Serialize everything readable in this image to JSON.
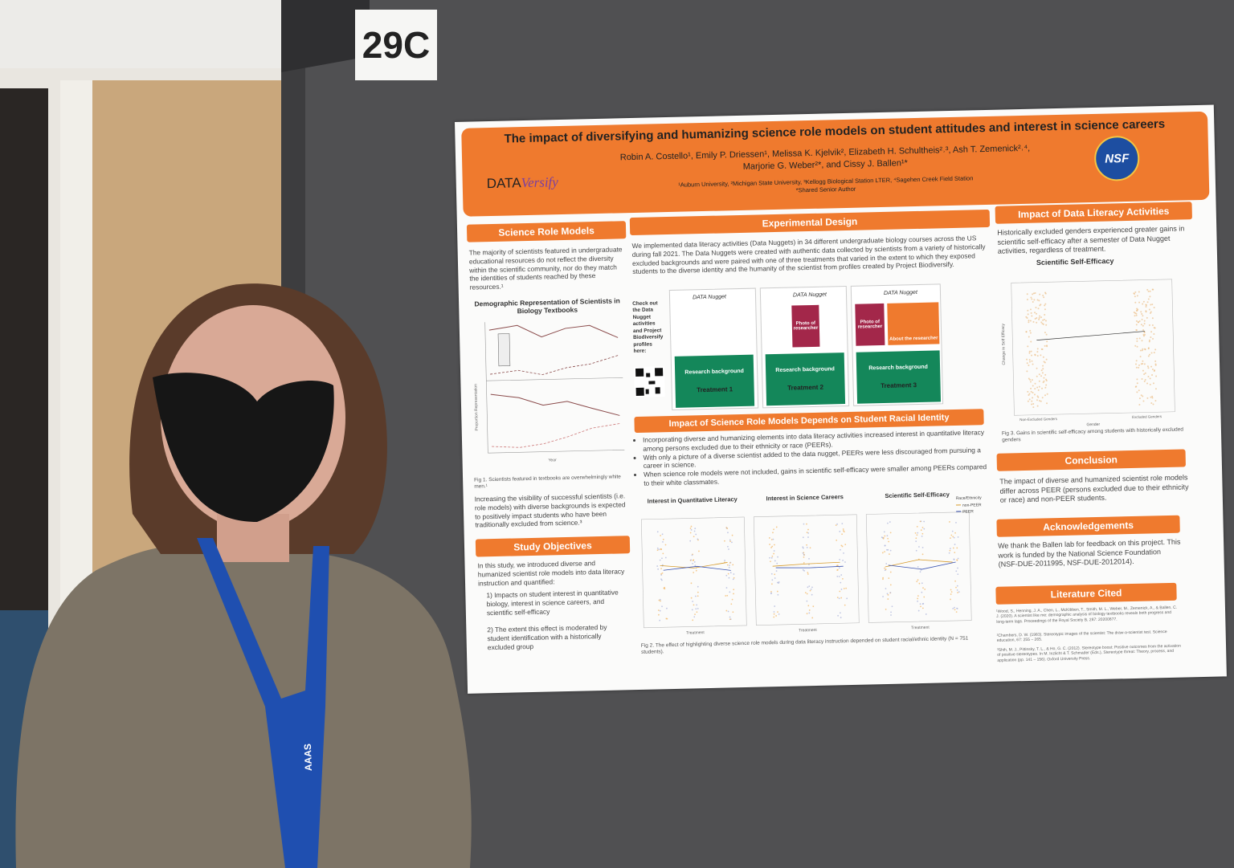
{
  "sign": "29C",
  "lanyard": "AAAS",
  "poster": {
    "title": "The impact of diversifying and humanizing science role models on student attitudes and interest in science careers",
    "authors": [
      "Robin A. Costello¹, Emily P. Driessen¹, Melissa K. Kjelvik², Elizabeth H. Schultheis²˒³, Ash T. Zemenick²˒⁴,",
      "Marjorie G. Weber²*, and Cissy J. Ballen¹*"
    ],
    "affiliations": "¹Auburn University, ²Michigan State University, ³Kellogg Biological Station LTER, ⁴Sagehen Creek Field Station",
    "note": "*Shared Senior Author",
    "logo_left": [
      "DATA",
      "Versify"
    ],
    "logo_right": "NSF",
    "role_models": {
      "heading": "Science Role Models",
      "text": "The majority of scientists featured in undergraduate educational resources do not reflect the diversity within the scientific community, nor do they match the identities of students reached by these resources.¹",
      "figure_title": "Demographic Representation of Scientists in Biology Textbooks",
      "y_label": "Proportion Representation",
      "x_label": "Year",
      "caption": "Fig 1. Scientists featured in textbooks are overwhelmingly white men.¹",
      "text2": "Increasing the visibility of successful scientists (i.e. role models) with diverse backgrounds is expected to positively impact students who have been traditionally excluded from science.³"
    },
    "objectives": {
      "heading": "Study Objectives",
      "text": "In this study, we introduced diverse and humanized scientist role models into data literacy instruction and quantified:",
      "items": [
        "1)  Impacts on student interest in quantitative biology, interest in science careers, and scientific self-efficacy",
        "2)  The extent this effect is moderated by student identification with a historically excluded group"
      ]
    },
    "design": {
      "heading": "Experimental Design",
      "text": "We implemented data literacy activities (Data Nuggets) in 34 different undergraduate biology courses across the US during fall 2021. The Data Nuggets were created with authentic data collected by scientists from a variety of historically excluded backgrounds and were paired with one of three treatments that varied in the extent to which they exposed students to the diverse identity and the humanity of the scientist from profiles created by Project Biodiversify.",
      "check_out": "Check out the Data Nugget activities and Project Biodiversify profiles here:",
      "panel_logo": "DATA Nugget",
      "background": "Research background",
      "photo": "Photo of researcher",
      "about": "About the researcher",
      "treatments": [
        "Treatment 1",
        "Treatment 2",
        "Treatment 3"
      ]
    },
    "impact": {
      "heading": "Impact of Science Role Models Depends on Student Racial Identity",
      "bullets": [
        "Incorporating diverse and humanizing elements into data literacy activities increased interest in quantitative literacy among persons excluded due to their ethnicity or race (PEERs).",
        "With only a picture of a diverse scientist added to the data nugget, PEERs were less discouraged from pursuing a career in science.",
        "When science role models were not included, gains in scientific self-efficacy were smaller among PEERs compared to their white classmates."
      ],
      "chart_titles": [
        "Interest in Quantitative Literacy",
        "Interest in Science Careers",
        "Scientific Self-Efficacy"
      ],
      "x_label": "Treatment",
      "legend_title": "Race/Ethnicity",
      "legend": [
        "non-PEER",
        "PEER"
      ],
      "caption": "Fig 2. The effect of highlighting diverse science role models during data literacy instruction depended on student racial/ethnic identity (N = 751 students)."
    },
    "literacy": {
      "heading": "Impact of Data Literacy Activities",
      "text": "Historically excluded genders experienced greater gains in scientific self-efficacy after a semester of Data Nugget activities, regardless of treatment.",
      "chart_title": "Scientific Self-Efficacy",
      "y_label": "Change in Self Efficacy",
      "x_label": "Gender",
      "x_categories": [
        "Non-Excluded Genders",
        "Excluded Genders"
      ],
      "caption": "Fig 3. Gains in scientific self-efficacy among students with historically excluded genders"
    },
    "conclusion": {
      "heading": "Conclusion",
      "text": "The impact of diverse and humanized scientist role models differ across PEER (persons excluded due to their ethnicity or race) and non-PEER students."
    },
    "acknowledgements": {
      "heading": "Acknowledgements",
      "text": "We thank the Ballen lab for feedback on this project. This work is funded by the National Science Foundation (NSF-DUE-2011995, NSF-DUE-2012014)."
    },
    "literature": {
      "heading": "Literature Cited",
      "refs": [
        "¹Wood, S., Henning, J. A., Chen, L., McKibben, T., Smith, M. L., Weber, M., Zemenick, A., & Ballen, C. J. (2020). A scientist like me: demographic analysis of biology textbooks reveals both progress and long-term lags. Proceedings of the Royal Society B, 287: 20200877.",
        "²Chambers, D. W. (1983). Stereotypic images of the scientist: The draw-a-scientist test. Science education, 67: 255 – 265.",
        "³Shih, M. J., Pittinsky, T. L., & Ho, G. C. (2012). Stereotype boost: Positive outcomes from the activation of positive stereotypes. In M. Inzlicht & T. Schmader (Eds.), Stereotype threat: Theory, process, and application (pp. 141 – 156). Oxford University Press."
      ]
    }
  }
}
